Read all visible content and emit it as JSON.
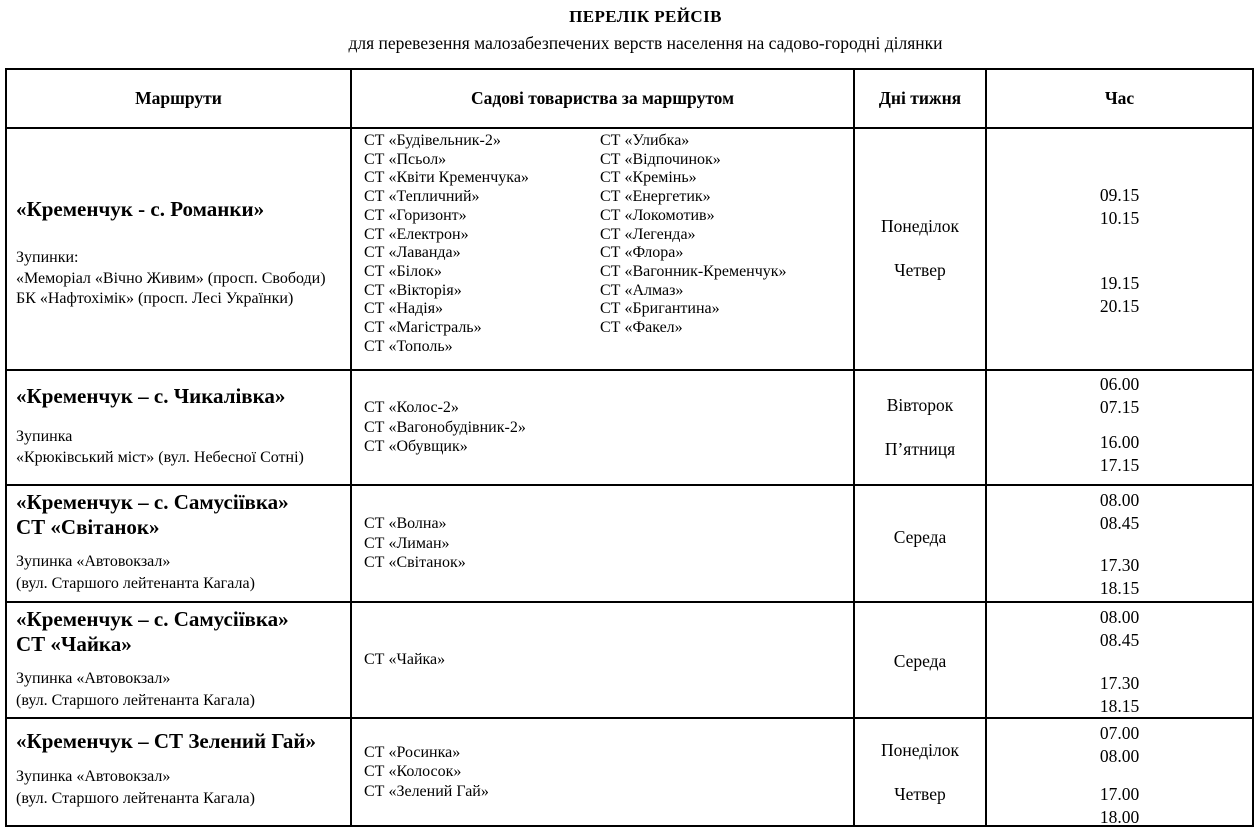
{
  "colors": {
    "text": "#000000",
    "border": "#000000",
    "background": "#ffffff"
  },
  "doc": {
    "title": "ПЕРЕЛІК РЕЙСІВ",
    "subtitle": "для перевезення малозабезпечених верств населення на садово-городні ділянки"
  },
  "table": {
    "headers": {
      "routes": "Маршрути",
      "societies": "Садові товариства за маршрутом",
      "days": "Дні тижня",
      "time": "Час"
    },
    "rows": [
      {
        "route_title": "«Кременчук - с. Романки»",
        "stops_label": "Зупинки:",
        "stops": [
          "«Меморіал «Вічно Живим» (просп. Свободи)",
          "БК «Нафтохімік» (просп. Лесі Українки)"
        ],
        "societies_left": [
          "СТ «Будівельник-2»",
          "СТ «Псьол»",
          "СТ «Квіти Кременчука»",
          "СТ «Тепличний»",
          "СТ «Горизонт»",
          "СТ «Електрон»",
          "СТ «Лаванда»",
          "СТ «Білок»",
          "СТ «Вікторія»",
          "СТ «Надія»",
          "СТ «Магістраль»",
          "СТ «Тополь»"
        ],
        "societies_right": [
          "СТ «Улибка»",
          "СТ «Відпочинок»",
          "СТ «Кремінь»",
          "СТ «Енергетик»",
          "СТ «Локомотив»",
          "СТ «Легенда»",
          "СТ «Флора»",
          "СТ «Вагонник-Кременчук»",
          "СТ «Алмаз»",
          "СТ «Бригантина»",
          "СТ «Факел»"
        ],
        "days": [
          "Понеділок",
          "Четвер"
        ],
        "times_morning": [
          "09.15",
          "10.15"
        ],
        "times_evening": [
          "19.15",
          "20.15"
        ]
      },
      {
        "route_title": "«Кременчук – с. Чикалівка»",
        "stops_label": "Зупинка",
        "stops": [
          "«Крюківський міст» (вул. Небесної Сотні)"
        ],
        "societies": [
          "СТ «Колос-2»",
          "СТ «Вагонобудівник-2»",
          "СТ «Обувщик»"
        ],
        "days": [
          "Вівторок",
          "П’ятниця"
        ],
        "times_morning": [
          "06.00",
          "07.15"
        ],
        "times_evening": [
          "16.00",
          "17.15"
        ]
      },
      {
        "route_title": "«Кременчук – с. Самусіївка»",
        "route_title2": "СТ «Світанок»",
        "stops_label": "Зупинка «Автовокзал»",
        "stops": [
          "(вул. Старшого лейтенанта Кагала)"
        ],
        "societies": [
          "СТ «Волна»",
          "СТ «Лиман»",
          "СТ «Світанок»"
        ],
        "days": [
          "Середа"
        ],
        "times_morning": [
          "08.00",
          "08.45"
        ],
        "times_evening": [
          "17.30",
          "18.15"
        ]
      },
      {
        "route_title": "«Кременчук – с. Самусіївка»",
        "route_title2": "СТ «Чайка»",
        "stops_label": "Зупинка «Автовокзал»",
        "stops": [
          "(вул. Старшого лейтенанта Кагала)"
        ],
        "societies": [
          "СТ «Чайка»"
        ],
        "days": [
          "Середа"
        ],
        "times_morning": [
          "08.00",
          "08.45"
        ],
        "times_evening": [
          "17.30",
          "18.15"
        ]
      },
      {
        "route_title": "«Кременчук – СТ Зелений Гай»",
        "stops_label": "Зупинка «Автовокзал»",
        "stops": [
          "(вул. Старшого лейтенанта Кагала)"
        ],
        "societies": [
          "СТ «Росинка»",
          "СТ «Колосок»",
          "СТ «Зелений Гай»"
        ],
        "days": [
          "Понеділок",
          "Четвер"
        ],
        "times_morning": [
          "07.00",
          "08.00"
        ],
        "times_evening": [
          "17.00",
          "18.00"
        ]
      }
    ]
  }
}
